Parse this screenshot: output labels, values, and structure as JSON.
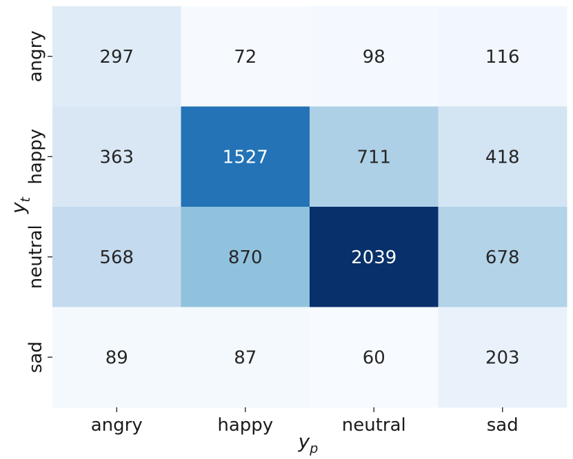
{
  "chart_data": {
    "type": "heatmap",
    "title": "",
    "xlabel": {
      "base": "y",
      "sub": "p"
    },
    "ylabel": {
      "base": "y",
      "sub": "t"
    },
    "x_categories": [
      "angry",
      "happy",
      "neutral",
      "sad"
    ],
    "y_categories": [
      "angry",
      "happy",
      "neutral",
      "sad"
    ],
    "values": [
      [
        297,
        72,
        98,
        116
      ],
      [
        363,
        1527,
        711,
        418
      ],
      [
        568,
        870,
        2039,
        678
      ],
      [
        89,
        87,
        60,
        203
      ]
    ],
    "colormap": "Blues",
    "color_low": "#f7fbff",
    "color_high": "#08306b",
    "colorbar": false,
    "grid": false
  }
}
